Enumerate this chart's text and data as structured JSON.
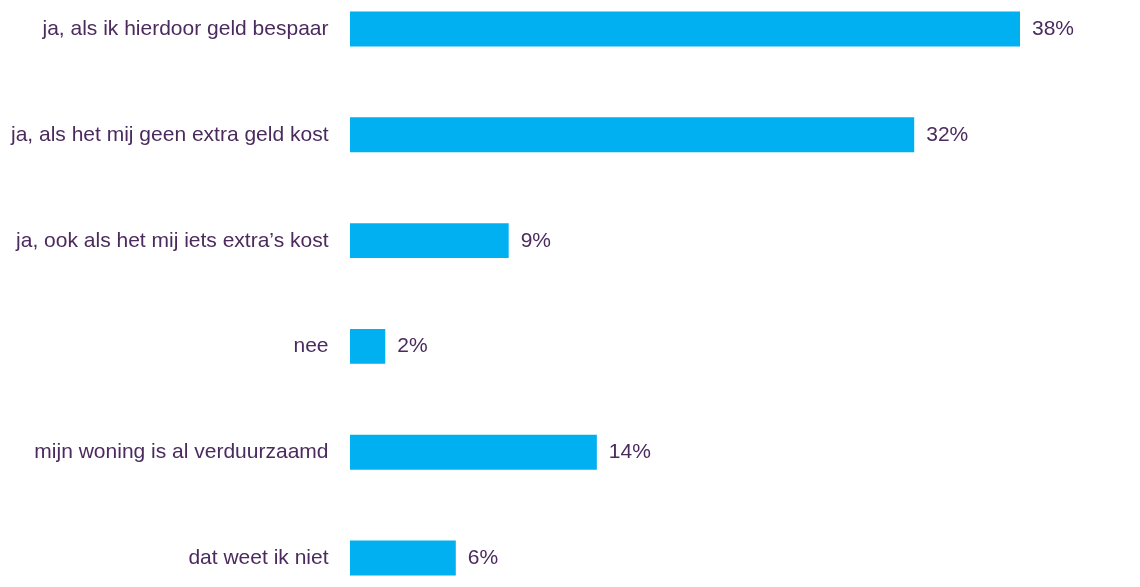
{
  "chart_data": {
    "type": "bar",
    "orientation": "horizontal",
    "categories": [
      "ja, als ik hierdoor geld bespaar",
      "ja, als het mij geen extra geld kost",
      "ja, ook als het mij iets extra’s kost ",
      "nee",
      "mijn woning is al verduurzaamd",
      "dat weet ik niet"
    ],
    "values": [
      38,
      32,
      9,
      2,
      14,
      6
    ],
    "color": "#00b0f0",
    "value_labels": [
      "38%",
      "32%",
      "9%",
      "2%",
      "14%",
      "6%"
    ]
  }
}
